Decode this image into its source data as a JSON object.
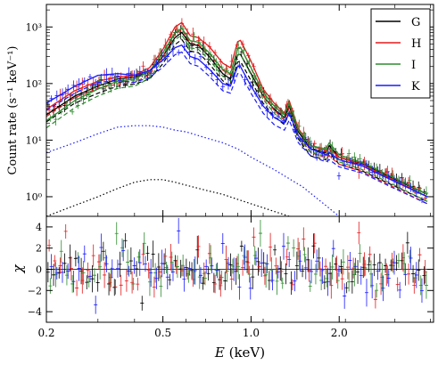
{
  "chart_data": [
    {
      "type": "line",
      "panel": "spectrum",
      "xlabel": "E",
      "xlabel_unit": "(keV)",
      "ylabel": "Count rate (s⁻¹ keV⁻¹)",
      "xscale": "log",
      "yscale": "log",
      "xlim": [
        0.2,
        4.2
      ],
      "ylim": [
        0.45,
        2500
      ],
      "xticks": [
        {
          "value": 0.2,
          "label": "0.2"
        },
        {
          "value": 0.5,
          "label": "0.5"
        },
        {
          "value": 1.0,
          "label": "1.0"
        },
        {
          "value": 2.0,
          "label": "2.0"
        }
      ],
      "yticks": [
        {
          "value": 1,
          "label": "10⁰"
        },
        {
          "value": 10,
          "label": "10¹"
        },
        {
          "value": 100,
          "label": "10²"
        },
        {
          "value": 1000,
          "label": "10³"
        }
      ],
      "legend_position": "top-right",
      "series": [
        {
          "name": "G",
          "color": "#000000",
          "x": [
            0.2,
            0.25,
            0.3,
            0.35,
            0.4,
            0.45,
            0.5,
            0.55,
            0.58,
            0.62,
            0.66,
            0.72,
            0.8,
            0.85,
            0.9,
            0.92,
            1.0,
            1.1,
            1.2,
            1.3,
            1.35,
            1.45,
            1.6,
            1.8,
            1.85,
            2.0,
            2.4,
            3.0,
            4.0
          ],
          "y": [
            28,
            60,
            90,
            120,
            130,
            160,
            300,
            650,
            800,
            500,
            470,
            300,
            150,
            120,
            320,
            330,
            150,
            60,
            35,
            25,
            40,
            14,
            7,
            6,
            8,
            5,
            3.8,
            2.2,
            1.1
          ]
        },
        {
          "name": "H",
          "color": "#e31a1c",
          "x": [
            0.2,
            0.25,
            0.3,
            0.35,
            0.4,
            0.45,
            0.5,
            0.55,
            0.58,
            0.62,
            0.66,
            0.72,
            0.8,
            0.85,
            0.9,
            0.92,
            1.0,
            1.1,
            1.2,
            1.3,
            1.35,
            1.45,
            1.6,
            1.8,
            1.85,
            2.0,
            2.4,
            3.0,
            4.0
          ],
          "y": [
            35,
            75,
            110,
            130,
            140,
            190,
            400,
            1000,
            1200,
            700,
            650,
            450,
            230,
            190,
            550,
            580,
            250,
            80,
            45,
            30,
            50,
            16,
            8,
            6.5,
            7,
            5,
            3.7,
            2.1,
            1.0
          ]
        },
        {
          "name": "I",
          "color": "#2e8b2e",
          "x": [
            0.2,
            0.25,
            0.3,
            0.35,
            0.4,
            0.45,
            0.5,
            0.55,
            0.58,
            0.62,
            0.66,
            0.72,
            0.8,
            0.85,
            0.9,
            0.92,
            1.0,
            1.1,
            1.2,
            1.3,
            1.35,
            1.45,
            1.6,
            1.8,
            1.85,
            2.0,
            2.4,
            3.0,
            4.0
          ],
          "y": [
            22,
            50,
            80,
            110,
            120,
            165,
            350,
            800,
            950,
            570,
            540,
            350,
            180,
            150,
            420,
            440,
            190,
            70,
            40,
            28,
            45,
            15,
            8,
            7,
            9,
            5.5,
            4,
            2.3,
            1.1
          ]
        },
        {
          "name": "K",
          "color": "#1a1aff",
          "x": [
            0.2,
            0.25,
            0.3,
            0.35,
            0.4,
            0.45,
            0.5,
            0.55,
            0.58,
            0.62,
            0.66,
            0.72,
            0.8,
            0.85,
            0.9,
            0.92,
            1.0,
            1.1,
            1.2,
            1.3,
            1.35,
            1.45,
            1.6,
            1.8,
            1.85,
            2.0,
            2.4,
            3.0,
            4.0
          ],
          "y": [
            45,
            90,
            140,
            150,
            140,
            170,
            260,
            430,
            480,
            300,
            270,
            180,
            100,
            90,
            200,
            200,
            90,
            40,
            25,
            20,
            30,
            12,
            7,
            5.5,
            6,
            4.5,
            3.5,
            2.0,
            1.0
          ]
        },
        {
          "name": "",
          "color": "#1a1aff",
          "style": "dotted",
          "x": [
            0.2,
            0.25,
            0.3,
            0.35,
            0.4,
            0.45,
            0.5,
            0.55,
            0.6,
            0.7,
            0.8,
            0.9,
            1.0,
            1.2,
            1.5,
            1.8,
            2.0
          ],
          "y": [
            6,
            9,
            13,
            17,
            18,
            18,
            17,
            15,
            14,
            11,
            9,
            7,
            5,
            3,
            1.5,
            0.7,
            0.45
          ]
        },
        {
          "name": "",
          "color": "#000000",
          "style": "dotted",
          "x": [
            0.2,
            0.25,
            0.3,
            0.35,
            0.4,
            0.45,
            0.5,
            0.55,
            0.6,
            0.7,
            0.8,
            0.9,
            1.0,
            1.2,
            1.35
          ],
          "y": [
            0.45,
            0.7,
            1.0,
            1.4,
            1.8,
            2.0,
            2.0,
            1.8,
            1.6,
            1.3,
            1.1,
            0.9,
            0.75,
            0.55,
            0.45
          ]
        }
      ]
    },
    {
      "type": "scatter",
      "panel": "residuals",
      "ylabel": "χ",
      "xscale": "log",
      "xlim": [
        0.2,
        4.2
      ],
      "ylim": [
        -5,
        5
      ],
      "yticks": [
        {
          "value": -4,
          "label": "−4"
        },
        {
          "value": -2,
          "label": "−2"
        },
        {
          "value": 0,
          "label": "0"
        },
        {
          "value": 2,
          "label": "2"
        },
        {
          "value": 4,
          "label": "4"
        }
      ]
    }
  ]
}
